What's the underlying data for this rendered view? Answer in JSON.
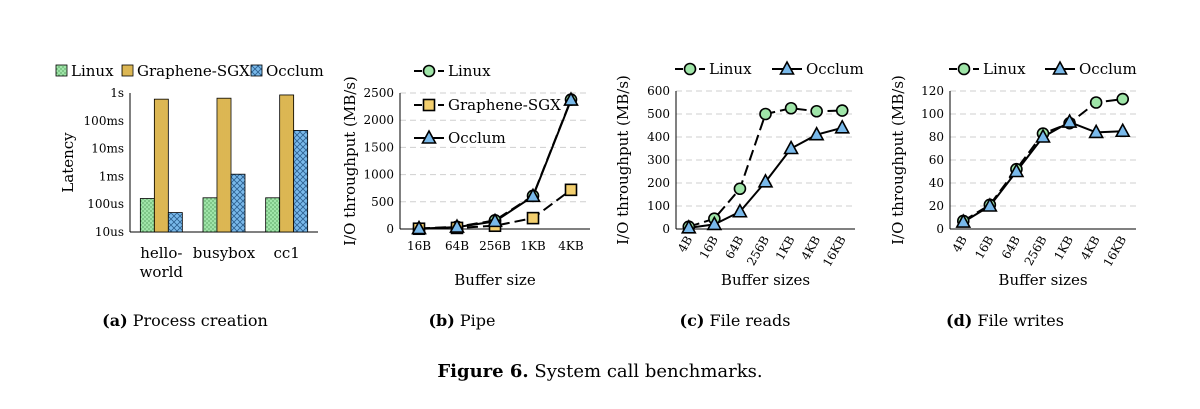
{
  "figure": {
    "label": "Figure 6.",
    "title": "System call benchmarks."
  },
  "colors": {
    "linux": "#9fe5a8",
    "graphene": "#f3cf6e",
    "occlum": "#79b9ea",
    "line": "#000000",
    "grid": "#cfcfcf"
  },
  "chart_data": [
    {
      "id": "a",
      "type": "bar",
      "caption_label": "(a)",
      "caption": "Process creation",
      "ylabel": "Latency",
      "xlabel": "",
      "yscale": "log",
      "yunit": "seconds",
      "ylim": [
        1e-05,
        1
      ],
      "yticks": [
        1e-05,
        0.0001,
        0.001,
        0.01,
        0.1,
        1
      ],
      "yticklabels": [
        "10us",
        "100us",
        "1ms",
        "10ms",
        "100ms",
        "1s"
      ],
      "categories": [
        "hello-world",
        "busybox",
        "cc1"
      ],
      "category_labels": [
        [
          "hello-",
          "world"
        ],
        [
          "busybox"
        ],
        [
          "cc1"
        ]
      ],
      "legend_position": "top",
      "series": [
        {
          "name": "Linux",
          "values": [
            0.00016,
            0.00017,
            0.00017
          ]
        },
        {
          "name": "Graphene-SGX",
          "values": [
            0.6,
            0.65,
            0.85
          ]
        },
        {
          "name": "Occlum",
          "values": [
            5e-05,
            0.0012,
            0.045
          ]
        }
      ]
    },
    {
      "id": "b",
      "type": "line",
      "caption_label": "(b)",
      "caption": "Pipe",
      "ylabel": "I/O throughput (MB/s)",
      "xlabel": "Buffer size",
      "categories": [
        "16B",
        "64B",
        "256B",
        "1KB",
        "4KB"
      ],
      "ylim": [
        0,
        2500
      ],
      "yticks": [
        0,
        500,
        1000,
        1500,
        2000,
        2500
      ],
      "legend_position": "top-left",
      "series": [
        {
          "name": "Linux",
          "values": [
            10,
            40,
            160,
            610,
            2380
          ]
        },
        {
          "name": "Graphene-SGX",
          "values": [
            5,
            20,
            60,
            200,
            720
          ]
        },
        {
          "name": "Occlum",
          "values": [
            8,
            35,
            140,
            600,
            2370
          ]
        }
      ]
    },
    {
      "id": "c",
      "type": "line",
      "caption_label": "(c)",
      "caption": "File reads",
      "ylabel": "I/O throughput (MB/s)",
      "xlabel": "Buffer sizes",
      "categories": [
        "4B",
        "16B",
        "64B",
        "256B",
        "1KB",
        "4KB",
        "16KB"
      ],
      "ylim": [
        0,
        600
      ],
      "yticks": [
        0,
        100,
        200,
        300,
        400,
        500,
        600
      ],
      "legend_position": "top",
      "series": [
        {
          "name": "Linux",
          "values": [
            10,
            45,
            175,
            500,
            525,
            512,
            515
          ]
        },
        {
          "name": "Occlum",
          "values": [
            5,
            20,
            75,
            205,
            350,
            410,
            440
          ]
        }
      ]
    },
    {
      "id": "d",
      "type": "line",
      "caption_label": "(d)",
      "caption": "File writes",
      "ylabel": "I/O throughput (MB/s)",
      "xlabel": "Buffer sizes",
      "categories": [
        "4B",
        "16B",
        "64B",
        "256B",
        "1KB",
        "4KB",
        "16KB"
      ],
      "ylim": [
        0,
        120
      ],
      "yticks": [
        0,
        20,
        40,
        60,
        80,
        100,
        120
      ],
      "legend_position": "top",
      "series": [
        {
          "name": "Linux",
          "values": [
            7,
            21,
            52,
            83,
            92,
            110,
            113
          ]
        },
        {
          "name": "Occlum",
          "values": [
            6,
            20,
            50,
            80,
            93,
            84,
            85
          ]
        }
      ]
    }
  ]
}
